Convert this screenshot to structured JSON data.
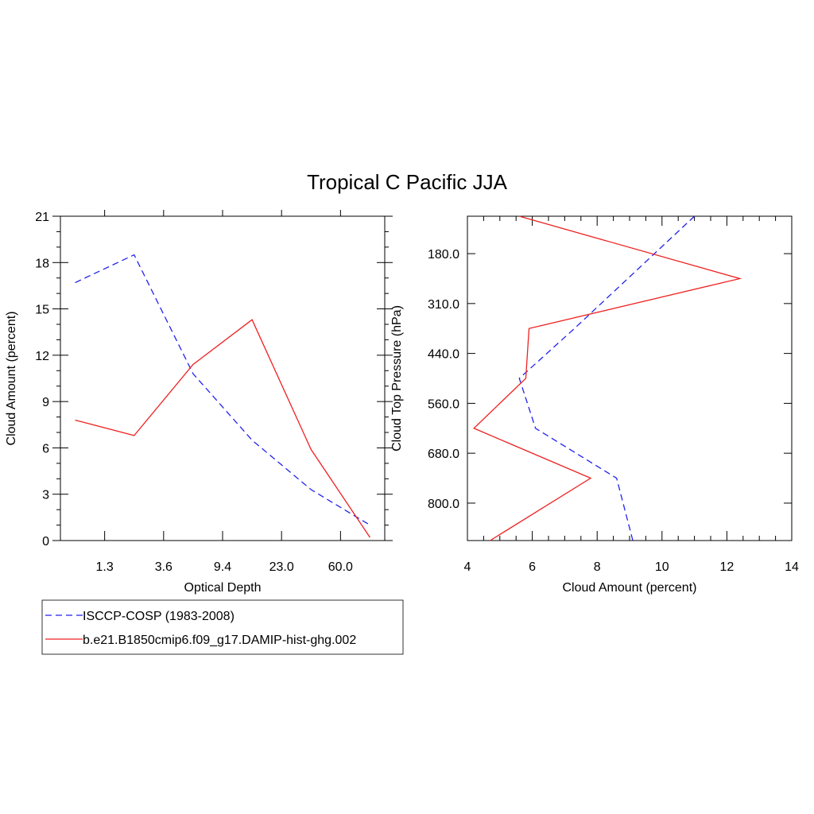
{
  "title": "Tropical C Pacific JJA",
  "chart_data": [
    {
      "type": "line",
      "xlabel": "Optical Depth",
      "ylabel": "Cloud Amount (percent)",
      "x_tick_labels": [
        "1.3",
        "3.6",
        "9.4",
        "23.0",
        "60.0"
      ],
      "y_tick_labels": [
        "0",
        "3",
        "6",
        "9",
        "12",
        "15",
        "18",
        "21"
      ],
      "ylim": [
        0,
        21
      ],
      "x": [
        0.3,
        1.3,
        2.3,
        3.6,
        6.0,
        9.4,
        15.0,
        23.0,
        41.0,
        60.0,
        80.0
      ],
      "series": [
        {
          "name": "ISCCP-COSP (1983-2008)",
          "values": [
            16.7,
            null,
            18.5,
            null,
            10.8,
            null,
            6.5,
            null,
            3.3,
            null,
            1.0
          ]
        },
        {
          "name": "b.e21.B1850cmip6.f09_g17.DAMIP-hist-ghg.002",
          "values": [
            7.8,
            null,
            6.8,
            null,
            11.4,
            null,
            14.3,
            null,
            5.9,
            null,
            0.2
          ]
        }
      ],
      "grid": false
    },
    {
      "type": "line",
      "xlabel": "Cloud Amount (percent)",
      "ylabel": "Cloud Top Pressure (hPa)",
      "x_tick_labels": [
        "4",
        "6",
        "8",
        "10",
        "12",
        "14"
      ],
      "xlim": [
        4,
        14
      ],
      "y_tick_labels": [
        "180.0",
        "310.0",
        "440.0",
        "560.0",
        "680.0",
        "800.0"
      ],
      "y": [
        50,
        180,
        245,
        310,
        375,
        440,
        500,
        560,
        620,
        680,
        740,
        800,
        860
      ],
      "series": [
        {
          "name": "ISCCP-COSP (1983-2008)",
          "values": [
            11.0,
            null,
            null,
            null,
            7.3,
            null,
            5.6,
            null,
            6.1,
            null,
            8.6,
            null,
            9.1
          ]
        },
        {
          "name": "b.e21.B1850cmip6.f09_g17.DAMIP-hist-ghg.002",
          "values": [
            5.6,
            null,
            12.4,
            null,
            5.9,
            null,
            5.8,
            null,
            4.2,
            null,
            7.8,
            null,
            4.7
          ]
        }
      ],
      "grid": false
    }
  ],
  "legend": {
    "placement": "bottom-left",
    "items": [
      {
        "label": "ISCCP-COSP (1983-2008)",
        "color": "#2222ee",
        "dash": true
      },
      {
        "label": "b.e21.B1850cmip6.f09_g17.DAMIP-hist-ghg.002",
        "color": "#ee2222",
        "dash": false
      }
    ]
  },
  "colors": {
    "obs": "#2222ee",
    "model": "#ee2222"
  }
}
